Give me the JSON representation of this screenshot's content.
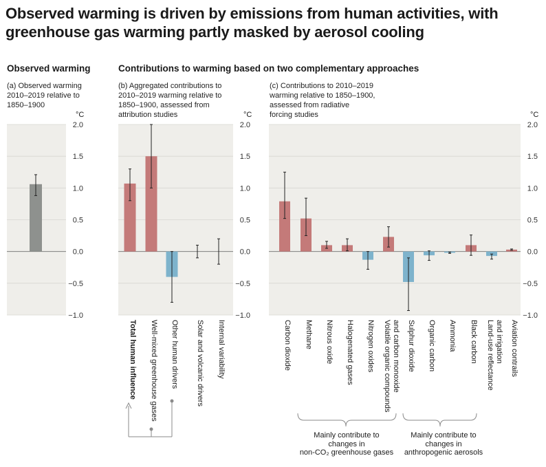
{
  "title_line1": "Observed warming is driven by emissions from human activities, with",
  "title_line2": "greenhouse gas warming partly masked by aerosol cooling",
  "left_heading": "Observed warming",
  "right_heading": "Contributions to warming based on two complementary approaches",
  "panel_a": {
    "sub1": "(a) Observed warming",
    "sub2": "2010–2019 relative to",
    "sub3": "1850–1900"
  },
  "panel_b": {
    "sub1": "(b) Aggregated contributions to",
    "sub2": "2010–2019 warming relative to",
    "sub3": "1850–1900, assessed from",
    "sub4": "attribution studies"
  },
  "panel_c": {
    "sub1": "(c) Contributions to 2010–2019",
    "sub2": "warming relative to 1850–1900,",
    "sub3": "assessed from radiative",
    "sub4": "forcing studies"
  },
  "unit": "°C",
  "ticks": [
    "2.0",
    "1.5",
    "1.0",
    "0.5",
    "0.0",
    "−0.5",
    "−1.0"
  ],
  "note_left": {
    "l1": "Mainly contribute to",
    "l2": "changes in",
    "l3": "non-CO₂ greenhouse gases"
  },
  "note_right": {
    "l1": "Mainly contribute to",
    "l2": "changes in",
    "l3": "anthropogenic aerosols"
  },
  "colors": {
    "warm": "#c47a79",
    "cool": "#7eb3cc",
    "gray": "#8e918e",
    "panel_bg": "#efeeea",
    "grid": "#d7d6d1"
  },
  "chart_data": [
    {
      "type": "bar",
      "title": "(a) Observed warming 2010–2019 relative to 1850–1900",
      "ylabel": "°C",
      "ylim": [
        -1.0,
        2.0
      ],
      "categories": [
        ""
      ],
      "values": [
        1.06
      ],
      "error_low": [
        0.88
      ],
      "error_high": [
        1.21
      ],
      "colors": [
        "gray"
      ]
    },
    {
      "type": "bar",
      "title": "(b) Aggregated contributions to 2010–2019 warming relative to 1850–1900, assessed from attribution studies",
      "ylabel": "°C",
      "ylim": [
        -1.0,
        2.0
      ],
      "categories": [
        "Total human influence",
        "Well-mixed greenhouse gases",
        "Other human drivers",
        "Solar and volcanic drivers",
        "Internal variability"
      ],
      "values": [
        1.07,
        1.5,
        -0.4,
        0.0,
        0.0
      ],
      "error_low": [
        0.8,
        1.0,
        -0.8,
        -0.1,
        -0.2
      ],
      "error_high": [
        1.3,
        2.0,
        0.0,
        0.1,
        0.2
      ],
      "colors": [
        "warm",
        "warm",
        "cool",
        "none",
        "none"
      ]
    },
    {
      "type": "bar",
      "title": "(c) Contributions to 2010–2019 warming relative to 1850–1900, assessed from radiative forcing studies",
      "ylabel": "°C",
      "ylim": [
        -1.0,
        2.0
      ],
      "categories": [
        "Carbon dioxide",
        "Methane",
        "Nitrous oxide",
        "Halogenated gases",
        "Nitrogen oxides",
        "Volatile organic compounds|and carbon monoxide",
        "Sulphur dioxide",
        "Organic carbon",
        "Ammonia",
        "Black carbon",
        "Land-use reflectance|and irrigation",
        "Aviation contrails"
      ],
      "values": [
        0.79,
        0.52,
        0.1,
        0.1,
        -0.13,
        0.23,
        -0.48,
        -0.06,
        -0.02,
        0.1,
        -0.07,
        0.03
      ],
      "error_low": [
        0.52,
        0.25,
        0.05,
        0.01,
        -0.28,
        0.07,
        -0.93,
        -0.14,
        -0.03,
        -0.06,
        -0.12,
        0.02
      ],
      "error_high": [
        1.25,
        0.84,
        0.16,
        0.2,
        0.0,
        0.39,
        -0.1,
        0.01,
        -0.01,
        0.26,
        -0.04,
        0.04
      ],
      "colors": [
        "warm",
        "warm",
        "warm",
        "warm",
        "cool",
        "warm",
        "cool",
        "cool",
        "cool",
        "warm",
        "cool",
        "warm"
      ]
    }
  ]
}
